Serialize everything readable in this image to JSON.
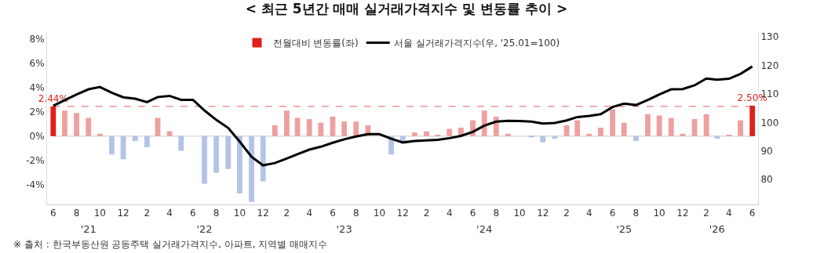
{
  "chart_data": {
    "type": "bar",
    "title": "< 최근 5년간 매매 실거래가격지수 및 변동률 추이 >",
    "x": [
      "2021-06",
      "2021-07",
      "2021-08",
      "2021-09",
      "2021-10",
      "2021-11",
      "2021-12",
      "2022-01",
      "2022-02",
      "2022-03",
      "2022-04",
      "2022-05",
      "2022-06",
      "2022-07",
      "2022-08",
      "2022-09",
      "2022-10",
      "2022-11",
      "2022-12",
      "2023-01",
      "2023-02",
      "2023-03",
      "2023-04",
      "2023-05",
      "2023-06",
      "2023-07",
      "2023-08",
      "2023-09",
      "2023-10",
      "2023-11",
      "2023-12",
      "2024-01",
      "2024-02",
      "2024-03",
      "2024-04",
      "2024-05",
      "2024-06",
      "2024-07",
      "2024-08",
      "2024-09",
      "2024-10",
      "2024-11",
      "2024-12",
      "2025-01",
      "2025-02",
      "2025-03",
      "2025-04",
      "2025-05",
      "2025-06",
      "2025-07",
      "2025-08",
      "2025-09",
      "2025-10",
      "2025-11",
      "2025-12",
      "2026-01",
      "2026-02",
      "2026-03",
      "2026-04",
      "2026-05",
      "2026-06"
    ],
    "series": [
      {
        "name": "전월대비 변동률(좌)",
        "values": [
          2.44,
          2.1,
          1.9,
          1.5,
          0.2,
          -1.5,
          -1.9,
          -0.4,
          -0.9,
          1.5,
          0.4,
          -1.2,
          0.0,
          -3.9,
          -3.0,
          -2.7,
          -4.7,
          -5.4,
          -3.7,
          0.9,
          2.1,
          1.5,
          1.4,
          1.1,
          1.6,
          1.2,
          1.2,
          0.9,
          0.0,
          -1.5,
          -0.6,
          0.3,
          0.4,
          0.1,
          0.6,
          0.7,
          1.3,
          2.1,
          1.6,
          0.2,
          0.0,
          -0.1,
          -0.5,
          -0.2,
          0.9,
          1.3,
          0.2,
          0.7,
          2.2,
          1.1,
          -0.4,
          1.8,
          1.7,
          1.5,
          0.2,
          1.4,
          1.8,
          -0.2,
          0.1,
          1.3,
          2.5
        ],
        "colors": [
          "#e0201b",
          "#eea0a0",
          "#eea0a0",
          "#eea0a0",
          "#eea0a0",
          "#b4c3e6",
          "#b4c3e6",
          "#b4c3e6",
          "#b4c3e6",
          "#eea0a0",
          "#eea0a0",
          "#b4c3e6",
          "#eea0a0",
          "#b4c3e6",
          "#b4c3e6",
          "#b4c3e6",
          "#b4c3e6",
          "#b4c3e6",
          "#b4c3e6",
          "#eea0a0",
          "#eea0a0",
          "#eea0a0",
          "#eea0a0",
          "#eea0a0",
          "#eea0a0",
          "#eea0a0",
          "#eea0a0",
          "#eea0a0",
          "#eea0a0",
          "#b4c3e6",
          "#b4c3e6",
          "#eea0a0",
          "#eea0a0",
          "#eea0a0",
          "#eea0a0",
          "#eea0a0",
          "#eea0a0",
          "#eea0a0",
          "#eea0a0",
          "#eea0a0",
          "#eea0a0",
          "#b4c3e6",
          "#b4c3e6",
          "#b4c3e6",
          "#eea0a0",
          "#eea0a0",
          "#eea0a0",
          "#eea0a0",
          "#eea0a0",
          "#eea0a0",
          "#b4c3e6",
          "#eea0a0",
          "#eea0a0",
          "#eea0a0",
          "#eea0a0",
          "#eea0a0",
          "#eea0a0",
          "#b4c3e6",
          "#eea0a0",
          "#eea0a0",
          "#e0201b"
        ],
        "color": "#eea0a0",
        "value_labels": [
          "2.44%",
          null,
          null,
          null,
          null,
          null,
          null,
          null,
          null,
          null,
          null,
          null,
          null,
          null,
          null,
          null,
          null,
          null,
          null,
          null,
          null,
          null,
          null,
          null,
          null,
          null,
          null,
          null,
          null,
          null,
          null,
          null,
          null,
          null,
          null,
          null,
          null,
          null,
          null,
          null,
          null,
          null,
          null,
          null,
          null,
          null,
          null,
          null,
          null,
          null,
          null,
          null,
          null,
          null,
          null,
          null,
          null,
          null,
          null,
          null,
          "2.50%"
        ]
      },
      {
        "name": "서울 실거래가격지수(우, '25.01=100)",
        "type": "line",
        "axis": "y2",
        "color": "#000000",
        "values": [
          105.8,
          107.8,
          109.8,
          111.6,
          112.4,
          110.4,
          108.8,
          108.3,
          107.1,
          108.9,
          109.3,
          107.9,
          107.9,
          104.2,
          100.9,
          98.1,
          93.3,
          88.0,
          85.0,
          85.8,
          87.4,
          88.9,
          90.5,
          91.5,
          92.9,
          94.1,
          95.1,
          95.9,
          95.9,
          94.3,
          93.0,
          93.5,
          93.7,
          93.9,
          94.5,
          95.3,
          96.7,
          98.9,
          100.3,
          100.6,
          100.5,
          100.3,
          99.6,
          99.8,
          100.7,
          101.9,
          102.3,
          102.9,
          105.4,
          106.6,
          106.1,
          107.9,
          109.8,
          111.6,
          111.7,
          113.0,
          115.4,
          115.0,
          115.3,
          117.0,
          119.6
        ]
      }
    ],
    "xlim": [
      "2021-05-16",
      "2026-06-16"
    ],
    "xticks": [
      {
        "value": "2021-06",
        "label": "6"
      },
      {
        "value": "2021-08",
        "label": "8"
      },
      {
        "value": "2021-10",
        "label": "10"
      },
      {
        "value": "2021-12",
        "label": "12"
      },
      {
        "value": "2022-02",
        "label": "2"
      },
      {
        "value": "2022-04",
        "label": "4"
      },
      {
        "value": "2022-06",
        "label": "6"
      },
      {
        "value": "2022-08",
        "label": "8"
      },
      {
        "value": "2022-10",
        "label": "10"
      },
      {
        "value": "2022-12",
        "label": "12"
      },
      {
        "value": "2023-02",
        "label": "2"
      },
      {
        "value": "2023-04",
        "label": "4"
      },
      {
        "value": "2023-06",
        "label": "6"
      },
      {
        "value": "2023-08",
        "label": "8"
      },
      {
        "value": "2023-10",
        "label": "10"
      },
      {
        "value": "2023-12",
        "label": "12"
      },
      {
        "value": "2024-02",
        "label": "2"
      },
      {
        "value": "2024-04",
        "label": "4"
      },
      {
        "value": "2024-06",
        "label": "6"
      },
      {
        "value": "2024-08",
        "label": "8"
      },
      {
        "value": "2024-10",
        "label": "10"
      },
      {
        "value": "2024-12",
        "label": "12"
      },
      {
        "value": "2025-02",
        "label": "2"
      },
      {
        "value": "2025-04",
        "label": "4"
      },
      {
        "value": "2025-06",
        "label": "6"
      },
      {
        "value": "2025-08",
        "label": "8"
      },
      {
        "value": "2025-10",
        "label": "10"
      },
      {
        "value": "2025-12",
        "label": "12"
      },
      {
        "value": "2026-02",
        "label": "2"
      },
      {
        "value": "2026-04",
        "label": "4"
      },
      {
        "value": "2026-06",
        "label": "6"
      }
    ],
    "ylim": [
      -5.6,
      8.6
    ],
    "yticks": [
      {
        "value": 8,
        "label": "8%"
      },
      {
        "value": 6,
        "label": "6%"
      },
      {
        "value": 4,
        "label": "4%"
      },
      {
        "value": 2,
        "label": "2%"
      },
      {
        "value": 0,
        "label": "0%"
      },
      {
        "value": -2,
        "label": "-2%"
      },
      {
        "value": -4,
        "label": "-4%"
      }
    ],
    "y2lim": [
      71.3,
      131.9
    ],
    "y2ticks": [
      80,
      90,
      100,
      110,
      120,
      130
    ],
    "ref_lines": [
      {
        "axis": "y",
        "value": 2.44,
        "color": "#e06060",
        "line_style": "dashed"
      },
      {
        "axis": "y",
        "value": 0,
        "color": "#cccccc",
        "line_style": "solid"
      }
    ],
    "x2lim": [
      "2021-05-16",
      "2026-06-16"
    ],
    "x2ticks": [
      {
        "value": "2021-09",
        "label": "'21"
      },
      {
        "value": "2022-07",
        "label": "'22"
      },
      {
        "value": "2023-07",
        "label": "'23"
      },
      {
        "value": "2024-07",
        "label": "'24"
      },
      {
        "value": "2025-07",
        "label": "'25"
      },
      {
        "value": "2026-03",
        "label": "'26"
      }
    ],
    "legend": "top",
    "grid": false,
    "annotations": [
      "※ 출처 : 한국부동산원 공동주택 실거래가격지수, 아파트, 지역별 매매지수"
    ]
  }
}
